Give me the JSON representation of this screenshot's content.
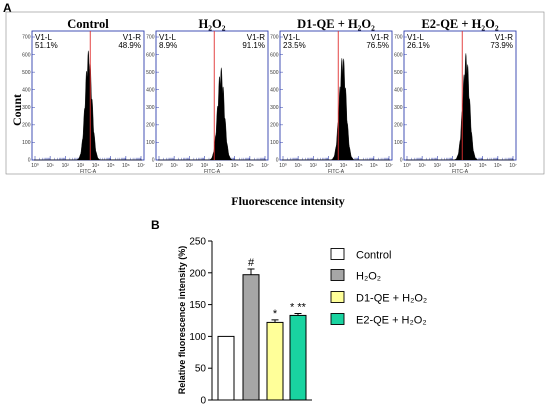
{
  "panel_a_label": "A",
  "panel_b_label": "B",
  "chart_data": [
    {
      "type": "histogram",
      "panel": "A",
      "ylabel": "Count",
      "xlabel": "Fluorescence intensity",
      "x_axis_name": "FITC-A",
      "x_ticks": [
        "10⁰",
        "10¹",
        "10²",
        "10³",
        "10⁴",
        "10⁵",
        "10⁶",
        "10⁷"
      ],
      "y_ticks": [
        "0",
        "100",
        "200",
        "300",
        "400",
        "500",
        "600",
        "700"
      ],
      "gate_left_label": "V1-L",
      "gate_right_label": "V1-R",
      "panels": [
        {
          "title": "Control",
          "v1_left": "51.1%",
          "v1_right": "48.9%",
          "peak_x": 0.505,
          "peak_y": 0.85,
          "gate_x": 0.52
        },
        {
          "title": "H₂O₂",
          "v1_left": "8.9%",
          "v1_right": "91.1%",
          "peak_x": 0.58,
          "peak_y": 0.72,
          "gate_x": 0.52
        },
        {
          "title": "D1-QE + H₂O₂",
          "v1_left": "23.5%",
          "v1_right": "76.5%",
          "peak_x": 0.56,
          "peak_y": 0.82,
          "gate_x": 0.52
        },
        {
          "title": "E2-QE + H₂O₂",
          "v1_left": "26.1%",
          "v1_right": "73.9%",
          "peak_x": 0.555,
          "peak_y": 0.83,
          "gate_x": 0.52
        }
      ]
    },
    {
      "type": "bar",
      "panel": "B",
      "ylabel": "Relative fluorescence intensity (%)",
      "ylim": [
        0,
        250
      ],
      "y_ticks": [
        0,
        50,
        100,
        150,
        200,
        250
      ],
      "categories": [
        "Control",
        "H₂O₂",
        "D1-QE + H₂O₂",
        "E2-QE + H₂O₂"
      ],
      "values": [
        100,
        197,
        122,
        133
      ],
      "errors": [
        0,
        9,
        4,
        3
      ],
      "colors": [
        "#ffffff",
        "#a6a6a6",
        "#ffff99",
        "#19d3a0"
      ],
      "annotations": [
        "",
        "#",
        "*",
        "* **"
      ],
      "legend": [
        "Control",
        "H₂O₂",
        "D1-QE + H₂O₂",
        "E2-QE + H₂O₂"
      ]
    }
  ]
}
